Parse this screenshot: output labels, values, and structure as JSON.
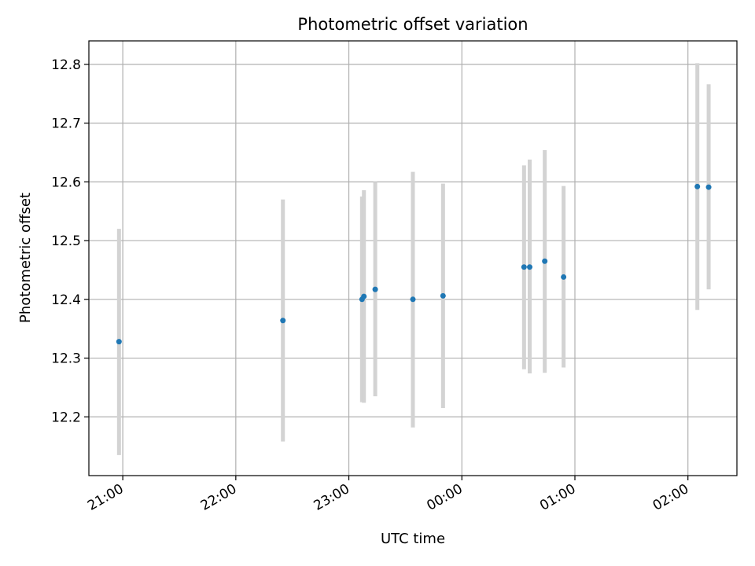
{
  "colors": {
    "point": "#1f77b4",
    "errorbar": "#d3d3d3",
    "grid": "#b0b0b0",
    "axes": "#000000"
  },
  "chart_data": {
    "type": "scatter",
    "title": "Photometric offset variation",
    "xlabel": "UTC time",
    "ylabel": "Photometric offset",
    "x_axis": {
      "kind": "time",
      "start": "20:42",
      "end": "02:26",
      "ticks": [
        "21:00",
        "22:00",
        "23:00",
        "00:00",
        "01:00",
        "02:00"
      ]
    },
    "ylim": [
      12.1,
      12.84
    ],
    "yticks": [
      12.2,
      12.3,
      12.4,
      12.5,
      12.6,
      12.7,
      12.8
    ],
    "grid": true,
    "errorbar_style": "light gray vertical bars",
    "series": [
      {
        "points": [
          {
            "x": "20:58",
            "y": 12.328,
            "yerr_low": 12.135,
            "yerr_high": 12.52
          },
          {
            "x": "22:25",
            "y": 12.364,
            "yerr_low": 12.158,
            "yerr_high": 12.57
          },
          {
            "x": "23:07",
            "y": 12.4,
            "yerr_low": 12.225,
            "yerr_high": 12.575
          },
          {
            "x": "23:08",
            "y": 12.405,
            "yerr_low": 12.224,
            "yerr_high": 12.586
          },
          {
            "x": "23:14",
            "y": 12.417,
            "yerr_low": 12.235,
            "yerr_high": 12.6
          },
          {
            "x": "23:34",
            "y": 12.4,
            "yerr_low": 12.182,
            "yerr_high": 12.617
          },
          {
            "x": "23:50",
            "y": 12.406,
            "yerr_low": 12.215,
            "yerr_high": 12.597
          },
          {
            "x": "00:33",
            "y": 12.455,
            "yerr_low": 12.281,
            "yerr_high": 12.628
          },
          {
            "x": "00:36",
            "y": 12.455,
            "yerr_low": 12.274,
            "yerr_high": 12.638
          },
          {
            "x": "00:44",
            "y": 12.465,
            "yerr_low": 12.275,
            "yerr_high": 12.654
          },
          {
            "x": "00:54",
            "y": 12.438,
            "yerr_low": 12.284,
            "yerr_high": 12.593
          },
          {
            "x": "02:05",
            "y": 12.592,
            "yerr_low": 12.382,
            "yerr_high": 12.802
          },
          {
            "x": "02:11",
            "y": 12.591,
            "yerr_low": 12.417,
            "yerr_high": 12.766
          }
        ]
      }
    ]
  }
}
